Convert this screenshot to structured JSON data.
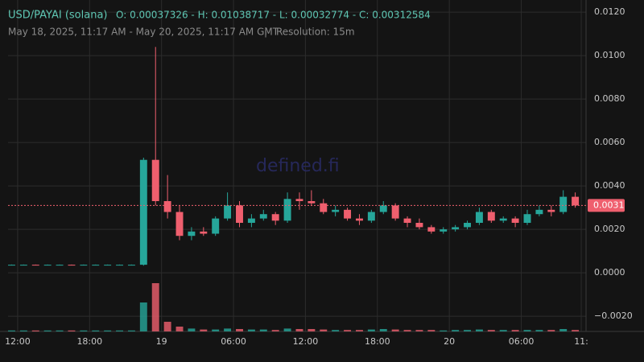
{
  "chart_data": {
    "type": "candlestick",
    "title": "USD/PAYAI (solana)",
    "ohlc_readout": "O: 0.00037326 - H: 0.01038717 - L: 0.00032774 - C: 0.00312584",
    "subtitle": "May 18, 2025, 11:17 AM - May 20, 2025, 11:17 AM GMT",
    "separator": "|",
    "resolution": "Resolution: 15m",
    "watermark": "defined.fi",
    "up_color": "#26a69a",
    "down_color": "#ef5f6e",
    "grid": true,
    "xlim": [
      -0.8,
      47.4
    ],
    "xticks": [
      {
        "value": 0,
        "label": "12:00"
      },
      {
        "value": 6,
        "label": "18:00"
      },
      {
        "value": 12,
        "label": "19"
      },
      {
        "value": 18,
        "label": "06:00"
      },
      {
        "value": 24,
        "label": "12:00"
      },
      {
        "value": 30,
        "label": "18:00"
      },
      {
        "value": 36,
        "label": "20"
      },
      {
        "value": 42,
        "label": "06:00"
      },
      {
        "value": 47,
        "label": "11:"
      }
    ],
    "ylim": [
      -0.0027,
      0.01256
    ],
    "yticks": [
      {
        "value": -0.002,
        "label": "−0.0020"
      },
      {
        "value": 0,
        "label": "0.0000"
      },
      {
        "value": 0.002,
        "label": "0.0020"
      },
      {
        "value": 0.004,
        "label": "0.0040"
      },
      {
        "value": 0.006,
        "label": "0.0060"
      },
      {
        "value": 0.008,
        "label": "0.0080"
      },
      {
        "value": 0.01,
        "label": "0.0100"
      },
      {
        "value": 0.012,
        "label": "0.0120"
      }
    ],
    "last_price": 0.0031,
    "x": [
      -0.5,
      0.5,
      1.5,
      2.5,
      3.5,
      4.5,
      5.5,
      6.5,
      7.5,
      8.5,
      9.5,
      10.5,
      11.5,
      12.5,
      13.5,
      14.5,
      15.5,
      16.5,
      17.5,
      18.5,
      19.5,
      20.5,
      21.5,
      22.5,
      23.5,
      24.5,
      25.5,
      26.5,
      27.5,
      28.5,
      29.5,
      30.5,
      31.5,
      32.5,
      33.5,
      34.5,
      35.5,
      36.5,
      37.5,
      38.5,
      39.5,
      40.5,
      41.5,
      42.5,
      43.5,
      44.5,
      45.5,
      46.5
    ],
    "open": [
      0.00037,
      0.00037,
      0.00037,
      0.00036,
      0.00037,
      0.00037,
      0.00036,
      0.00037,
      0.00037,
      0.00037,
      0.00037,
      0.00037,
      0.0052,
      0.0033,
      0.0028,
      0.0017,
      0.0019,
      0.0018,
      0.0025,
      0.0031,
      0.0023,
      0.0025,
      0.0027,
      0.0024,
      0.0034,
      0.0033,
      0.0032,
      0.0028,
      0.0029,
      0.0025,
      0.0024,
      0.0028,
      0.0031,
      0.0025,
      0.0023,
      0.0021,
      0.0019,
      0.002,
      0.0021,
      0.0023,
      0.0028,
      0.0024,
      0.0025,
      0.0023,
      0.0027,
      0.0029,
      0.0028,
      0.0035
    ],
    "high": [
      0.00038,
      0.00038,
      0.00038,
      0.00038,
      0.00038,
      0.00038,
      0.00038,
      0.00038,
      0.00038,
      0.00038,
      0.00038,
      0.0053,
      0.0104,
      0.0045,
      0.0031,
      0.0021,
      0.0021,
      0.0026,
      0.0037,
      0.0033,
      0.0027,
      0.0029,
      0.0028,
      0.0037,
      0.0037,
      0.0038,
      0.0034,
      0.0031,
      0.003,
      0.0027,
      0.0029,
      0.0033,
      0.0032,
      0.0026,
      0.0025,
      0.0022,
      0.0021,
      0.0022,
      0.0024,
      0.003,
      0.0029,
      0.0026,
      0.0026,
      0.0029,
      0.0031,
      0.0031,
      0.0038,
      0.0037
    ],
    "low": [
      0.00036,
      0.00036,
      0.00036,
      0.00035,
      0.00036,
      0.00036,
      0.00035,
      0.00036,
      0.00036,
      0.00036,
      0.00036,
      0.00033,
      0.0031,
      0.0025,
      0.0015,
      0.0015,
      0.0017,
      0.0017,
      0.0024,
      0.0021,
      0.0021,
      0.0024,
      0.0022,
      0.0023,
      0.0029,
      0.0031,
      0.0027,
      0.0026,
      0.0024,
      0.0022,
      0.0023,
      0.0027,
      0.0024,
      0.0021,
      0.002,
      0.0018,
      0.0018,
      0.0019,
      0.002,
      0.0022,
      0.0023,
      0.0023,
      0.0021,
      0.0022,
      0.0026,
      0.0026,
      0.0027,
      0.003
    ],
    "close": [
      0.00037,
      0.00037,
      0.00036,
      0.00037,
      0.00037,
      0.00036,
      0.00037,
      0.00037,
      0.00037,
      0.00037,
      0.00037,
      0.0052,
      0.0033,
      0.0028,
      0.0017,
      0.0019,
      0.0018,
      0.0025,
      0.0031,
      0.0023,
      0.0025,
      0.0027,
      0.0024,
      0.0034,
      0.0033,
      0.0032,
      0.0028,
      0.0029,
      0.0025,
      0.0024,
      0.0028,
      0.0031,
      0.0025,
      0.0023,
      0.0021,
      0.0019,
      0.002,
      0.0021,
      0.0023,
      0.0028,
      0.0024,
      0.0025,
      0.0023,
      0.0027,
      0.0029,
      0.0028,
      0.0035,
      0.0031
    ],
    "volume": [
      2,
      2,
      2,
      2,
      2,
      2,
      2,
      2,
      2,
      2,
      2,
      60,
      100,
      20,
      10,
      6,
      4,
      4,
      6,
      5,
      4,
      4,
      3,
      6,
      5,
      5,
      4,
      3,
      3,
      3,
      4,
      5,
      4,
      3,
      3,
      3,
      2,
      3,
      3,
      4,
      3,
      3,
      3,
      3,
      3,
      3,
      5,
      3
    ],
    "volume_lim": [
      0,
      100
    ]
  }
}
